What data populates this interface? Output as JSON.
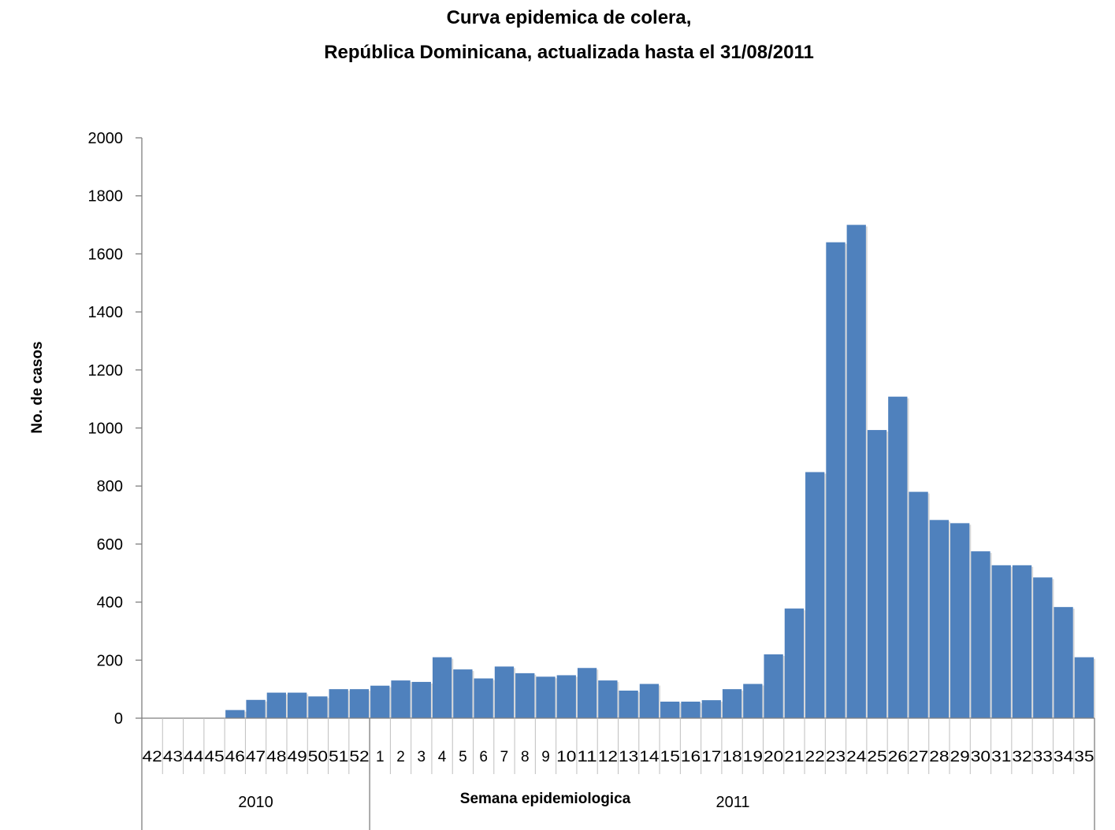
{
  "chart_data": {
    "type": "bar",
    "title_lines": [
      "Curva epidemica de colera,",
      "República Dominicana, actualizada hasta el  31/08/2011"
    ],
    "ylabel": "No. de casos",
    "xlabel": "Semana epidemiologica",
    "ylim": [
      0,
      2000
    ],
    "yticks": [
      0,
      200,
      400,
      600,
      800,
      1000,
      1200,
      1400,
      1600,
      1800,
      2000
    ],
    "grid": false,
    "legend": "none",
    "bar_color": "#4F81BD",
    "categories": [
      "42",
      "43",
      "44",
      "45",
      "46",
      "47",
      "48",
      "49",
      "50",
      "51",
      "52",
      "1",
      "2",
      "3",
      "4",
      "5",
      "6",
      "7",
      "8",
      "9",
      "10",
      "11",
      "12",
      "13",
      "14",
      "15",
      "16",
      "17",
      "18",
      "19",
      "20",
      "21",
      "22",
      "23",
      "24",
      "25",
      "26",
      "27",
      "28",
      "29",
      "30",
      "31",
      "32",
      "33",
      "34",
      "35"
    ],
    "values": [
      0,
      0,
      0,
      0,
      28,
      63,
      88,
      88,
      75,
      100,
      100,
      112,
      130,
      125,
      210,
      168,
      137,
      178,
      155,
      143,
      148,
      173,
      130,
      95,
      118,
      57,
      57,
      62,
      100,
      118,
      220,
      378,
      848,
      1640,
      1700,
      993,
      1108,
      780,
      683,
      672,
      575,
      527,
      527,
      485,
      383,
      210
    ],
    "groups": [
      {
        "label": "2010",
        "count": 11
      },
      {
        "label": "2011",
        "count": 35
      }
    ]
  }
}
